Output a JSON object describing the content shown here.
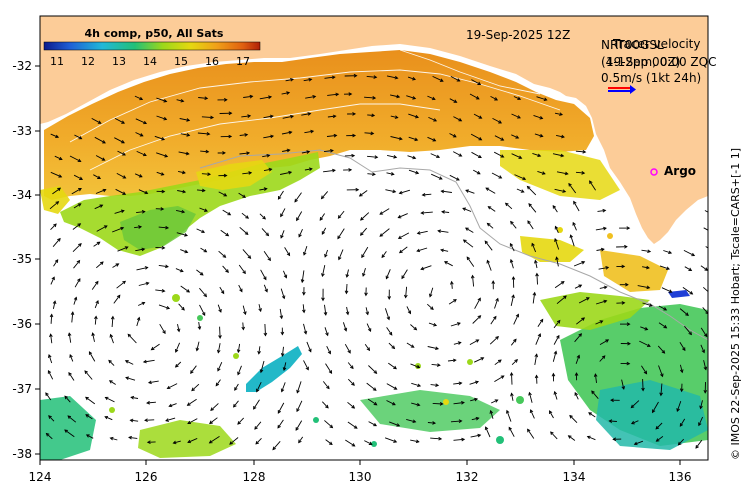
{
  "map": {
    "timestamp": "19-Sep-2025 12Z",
    "colorbar": {
      "title": "4h comp, p50, All Sats",
      "ticks": [
        "11",
        "12",
        "13",
        "14",
        "15",
        "16",
        "17"
      ],
      "stops": [
        "#0a1a8c",
        "#1f5fd6",
        "#22b8d8",
        "#22c078",
        "#9cd81a",
        "#e6d810",
        "#f0a018",
        "#e06010",
        "#b02008"
      ]
    },
    "legend": {
      "line1": "NRT00GSL",
      "line1_overlay": "Tracer velocity",
      "line2": "(4-12pm, 0Z)",
      "line2_overlay": "19-Sep 00:00 ZQC",
      "scale_label": "0.5m/s (1kt 24h)"
    },
    "argo_label": "Argo",
    "y_ticks": [
      "-32",
      "-33",
      "-34",
      "-35",
      "-36",
      "-37",
      "-38"
    ],
    "x_ticks": [
      "124",
      "126",
      "128",
      "130",
      "132",
      "134",
      "136"
    ],
    "credit": "© IMOS 22-Sep-2025 15:33 Hobart; Tscale=CARS+[-1 1]",
    "colors": {
      "land": "#fccc98",
      "sst_warm": "#f0a018",
      "sst_cool": "#9cd81a",
      "arrow": "#000000",
      "argo": "#ff00ff"
    }
  }
}
